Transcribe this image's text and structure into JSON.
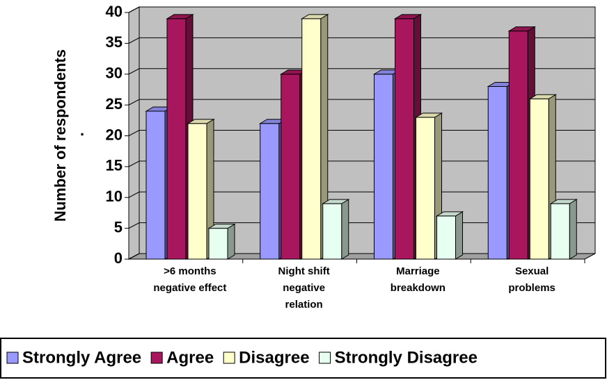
{
  "chart_data": {
    "type": "bar3d",
    "y_label": "Number of respondents",
    "annotation": ".",
    "categories": [
      [
        ">6 months",
        "negative effect"
      ],
      [
        "Night shift",
        "negative",
        "relation"
      ],
      [
        "Marriage",
        "breakdown"
      ],
      [
        "Sexual",
        "problems"
      ]
    ],
    "series": [
      {
        "name": "Strongly Agree",
        "color": "#9999ff",
        "values": [
          24,
          22,
          30,
          28
        ]
      },
      {
        "name": "Agree",
        "color": "#a8175e",
        "values": [
          39,
          30,
          39,
          37
        ]
      },
      {
        "name": "Disagree",
        "color": "#ffffcc",
        "values": [
          22,
          39,
          23,
          26
        ]
      },
      {
        "name": "Strongly Disagree",
        "color": "#e6fff0",
        "values": [
          5,
          9,
          7,
          9
        ]
      }
    ],
    "ylim": [
      0,
      40
    ],
    "yticks": [
      0,
      5,
      10,
      15,
      20,
      25,
      30,
      35,
      40
    ],
    "grid": true,
    "legend": "bottom"
  }
}
